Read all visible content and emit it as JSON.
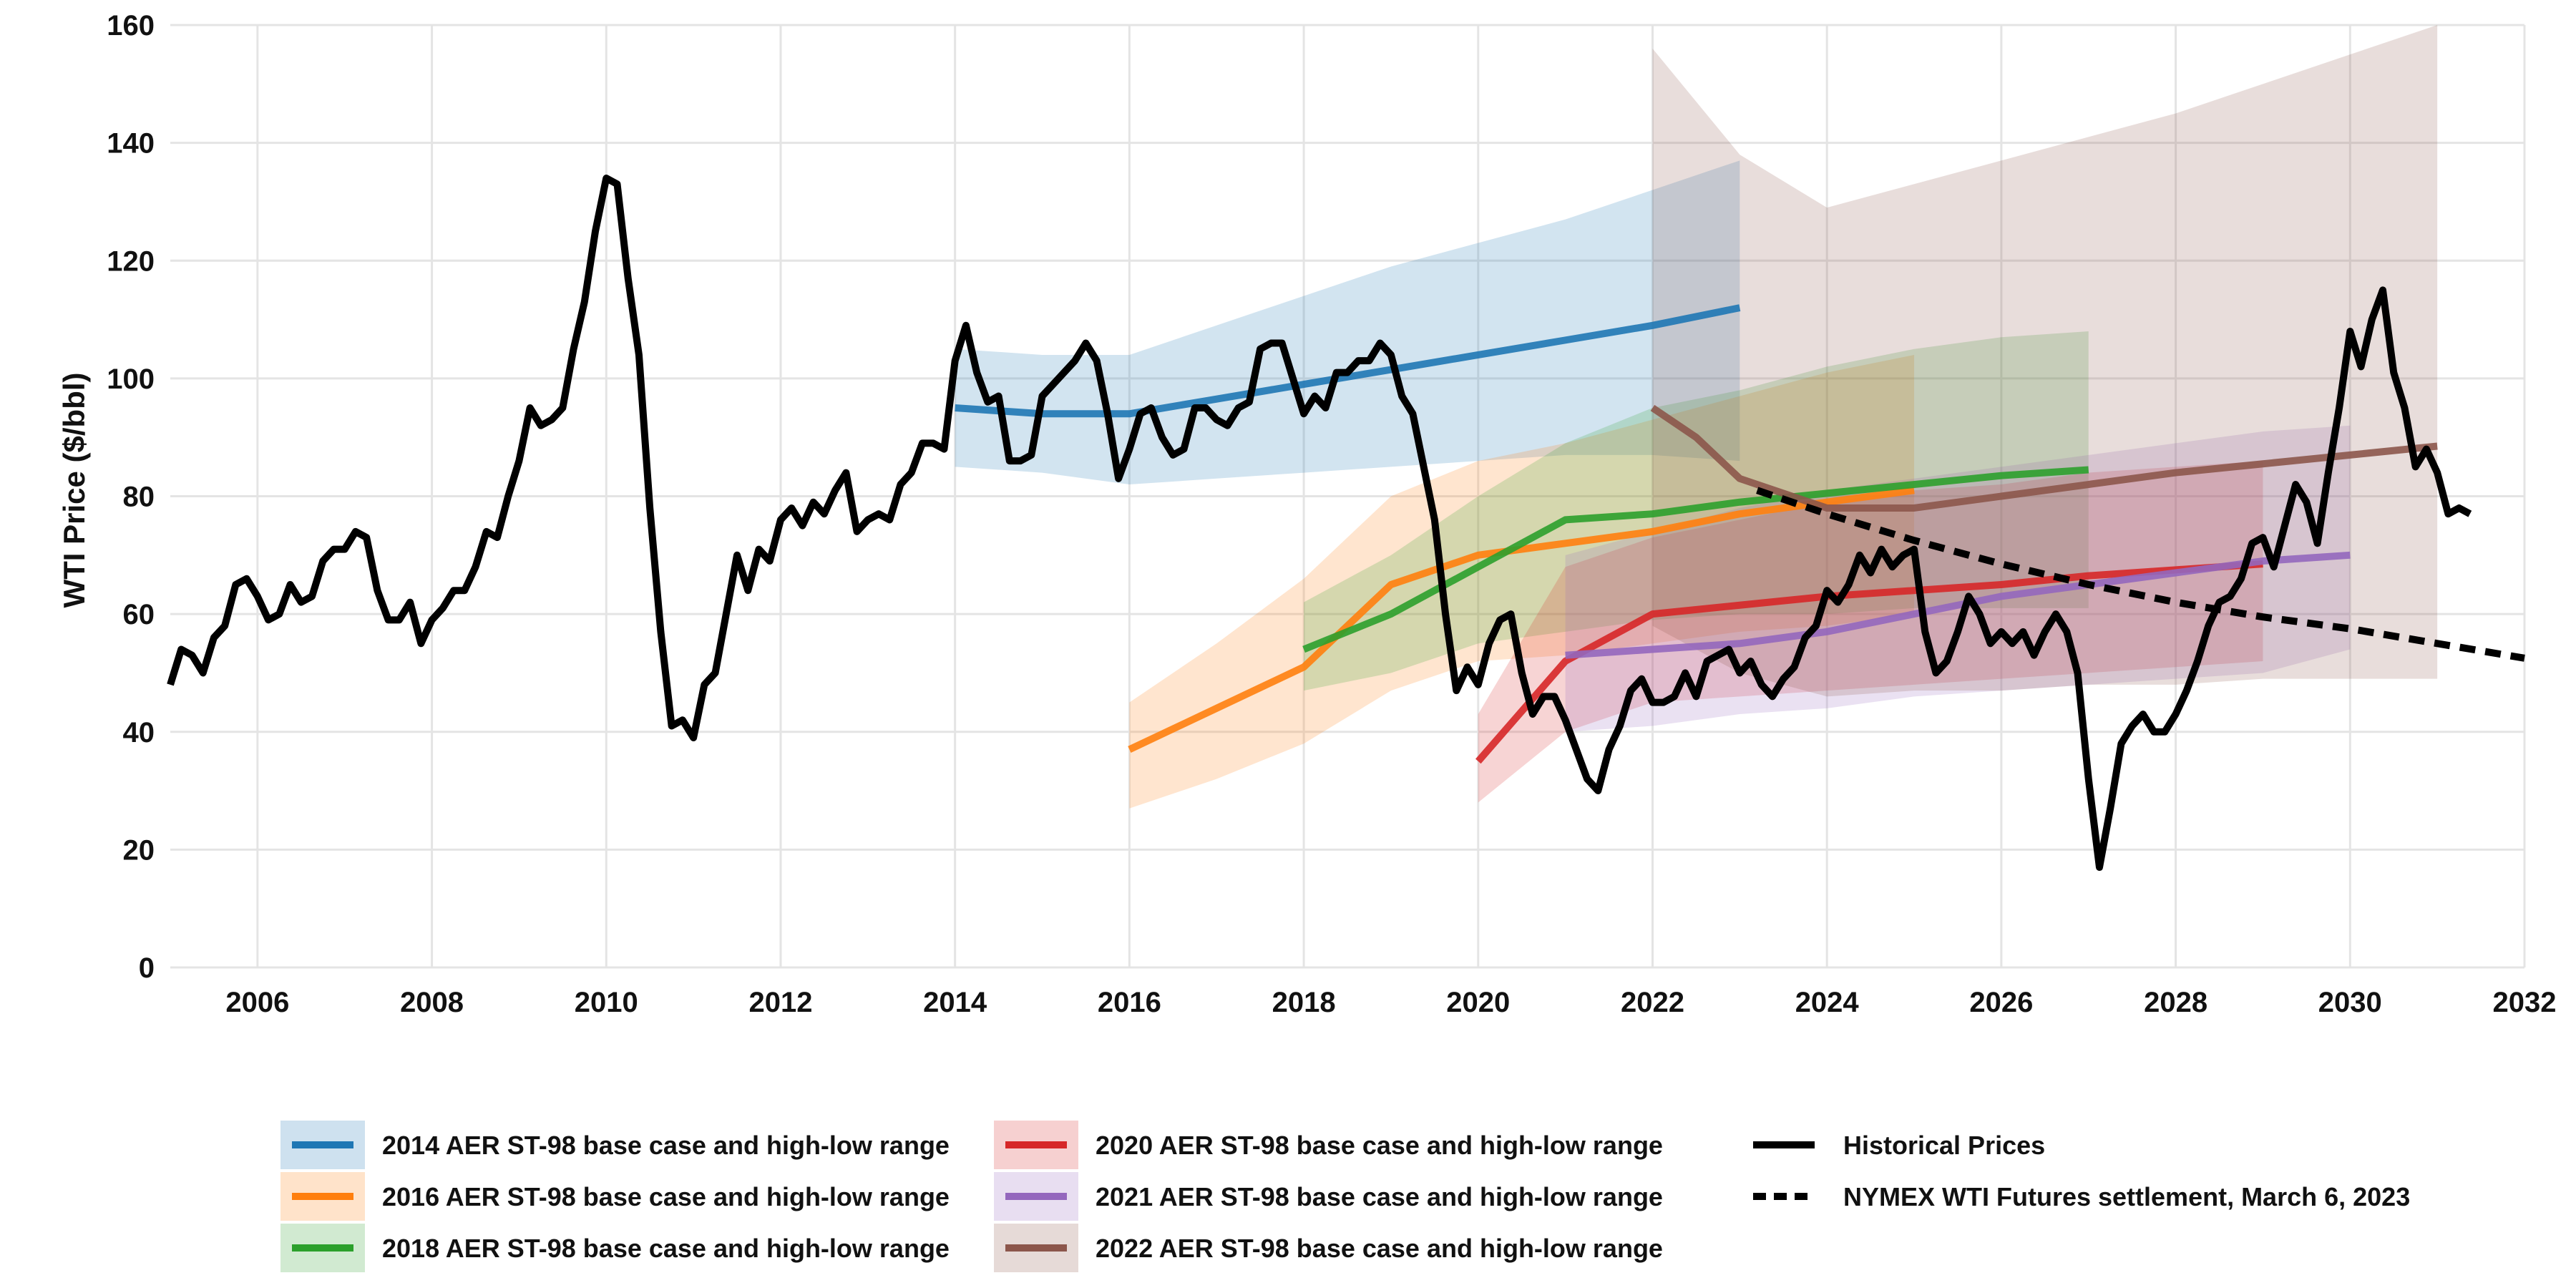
{
  "chart_data": {
    "type": "line",
    "title": "",
    "xlabel": "",
    "ylabel": "WTI Price ($/bbl)",
    "xlim": [
      2005.0,
      2032.0
    ],
    "ylim": [
      0,
      160
    ],
    "xticks": [
      2006,
      2008,
      2010,
      2012,
      2014,
      2016,
      2018,
      2020,
      2022,
      2024,
      2026,
      2028,
      2030,
      2032
    ],
    "yticks": [
      0,
      20,
      40,
      60,
      80,
      100,
      120,
      140,
      160
    ],
    "grid": true,
    "legend_position": "bottom",
    "forecasts": [
      {
        "name": "2014 AER ST-98 base case and high-low range",
        "color": "#1f77b4",
        "base": [
          [
            2014,
            95
          ],
          [
            2015,
            94
          ],
          [
            2016,
            94
          ],
          [
            2017,
            96.5
          ],
          [
            2018,
            99
          ],
          [
            2019,
            101.5
          ],
          [
            2020,
            104
          ],
          [
            2021,
            106.5
          ],
          [
            2022,
            109
          ],
          [
            2023,
            112
          ]
        ],
        "band": [
          [
            2014,
            85,
            105
          ],
          [
            2015,
            84,
            104
          ],
          [
            2016,
            82,
            104
          ],
          [
            2017,
            83,
            109
          ],
          [
            2018,
            84,
            114
          ],
          [
            2019,
            85,
            119
          ],
          [
            2020,
            86,
            123
          ],
          [
            2021,
            87,
            127
          ],
          [
            2022,
            87,
            132
          ],
          [
            2023,
            86,
            137
          ]
        ]
      },
      {
        "name": "2016 AER ST-98 base case and high-low range",
        "color": "#ff7f0e",
        "base": [
          [
            2016,
            37
          ],
          [
            2017,
            44
          ],
          [
            2018,
            51
          ],
          [
            2019,
            65
          ],
          [
            2020,
            70
          ],
          [
            2021,
            72
          ],
          [
            2022,
            74
          ],
          [
            2023,
            77
          ],
          [
            2024,
            79
          ],
          [
            2025,
            81
          ]
        ],
        "band": [
          [
            2016,
            27,
            45
          ],
          [
            2017,
            32,
            55
          ],
          [
            2018,
            38,
            66
          ],
          [
            2019,
            47,
            80
          ],
          [
            2020,
            52,
            86
          ],
          [
            2021,
            53,
            89
          ],
          [
            2022,
            55,
            93
          ],
          [
            2023,
            57,
            97
          ],
          [
            2024,
            58,
            101
          ],
          [
            2025,
            60,
            104
          ]
        ]
      },
      {
        "name": "2018 AER ST-98 base case and high-low range",
        "color": "#2ca02c",
        "base": [
          [
            2018,
            54
          ],
          [
            2019,
            60
          ],
          [
            2020,
            68
          ],
          [
            2021,
            76
          ],
          [
            2022,
            77
          ],
          [
            2023,
            79
          ],
          [
            2024,
            80.5
          ],
          [
            2025,
            82
          ],
          [
            2026,
            83.5
          ],
          [
            2027,
            84.5
          ]
        ],
        "band": [
          [
            2018,
            47,
            62
          ],
          [
            2019,
            50,
            70
          ],
          [
            2020,
            55,
            80
          ],
          [
            2021,
            57,
            89
          ],
          [
            2022,
            59,
            95
          ],
          [
            2023,
            60,
            98
          ],
          [
            2024,
            60,
            102
          ],
          [
            2025,
            61,
            105
          ],
          [
            2026,
            61,
            107
          ],
          [
            2027,
            61,
            108
          ]
        ]
      },
      {
        "name": "2020 AER ST-98 base case and high-low range",
        "color": "#d62728",
        "base": [
          [
            2020,
            35
          ],
          [
            2021,
            52
          ],
          [
            2022,
            60
          ],
          [
            2023,
            61.5
          ],
          [
            2024,
            63
          ],
          [
            2025,
            64
          ],
          [
            2026,
            65
          ],
          [
            2027,
            66.5
          ],
          [
            2028,
            67.5
          ],
          [
            2029,
            68.5
          ]
        ],
        "band": [
          [
            2020,
            28,
            43
          ],
          [
            2021,
            40,
            68
          ],
          [
            2022,
            45,
            73
          ],
          [
            2023,
            46,
            76
          ],
          [
            2024,
            47,
            79
          ],
          [
            2025,
            48,
            81
          ],
          [
            2026,
            49,
            82
          ],
          [
            2027,
            50,
            84
          ],
          [
            2028,
            51,
            85
          ],
          [
            2029,
            52,
            86
          ]
        ]
      },
      {
        "name": "2021 AER ST-98 base case and high-low range",
        "color": "#9467bd",
        "base": [
          [
            2021,
            53
          ],
          [
            2022,
            54
          ],
          [
            2023,
            55
          ],
          [
            2024,
            57
          ],
          [
            2025,
            60
          ],
          [
            2026,
            63
          ],
          [
            2027,
            65
          ],
          [
            2028,
            67
          ],
          [
            2029,
            69
          ],
          [
            2030,
            70
          ]
        ],
        "band": [
          [
            2021,
            40,
            70
          ],
          [
            2022,
            41,
            74
          ],
          [
            2023,
            43,
            78
          ],
          [
            2024,
            44,
            81
          ],
          [
            2025,
            46,
            83
          ],
          [
            2026,
            47,
            85
          ],
          [
            2027,
            48,
            87
          ],
          [
            2028,
            49,
            89
          ],
          [
            2029,
            50,
            91
          ],
          [
            2030,
            54,
            92
          ]
        ]
      },
      {
        "name": "2022 AER ST-98 base case and high-low range",
        "color": "#8c564b",
        "base": [
          [
            2022,
            95
          ],
          [
            2022.5,
            90
          ],
          [
            2023,
            83
          ],
          [
            2024,
            78
          ],
          [
            2025,
            78
          ],
          [
            2026,
            80
          ],
          [
            2027,
            82
          ],
          [
            2028,
            84
          ],
          [
            2029,
            85.5
          ],
          [
            2030,
            87
          ],
          [
            2031,
            88.5
          ]
        ],
        "band": [
          [
            2022,
            58,
            156
          ],
          [
            2023,
            50,
            138
          ],
          [
            2024,
            46,
            129
          ],
          [
            2025,
            47,
            133
          ],
          [
            2026,
            47,
            137
          ],
          [
            2027,
            48,
            141
          ],
          [
            2028,
            48,
            145
          ],
          [
            2029,
            49,
            150
          ],
          [
            2030,
            49,
            155
          ],
          [
            2031,
            49,
            160
          ]
        ]
      }
    ],
    "historical": {
      "name": "Historical Prices",
      "color": "#000000",
      "x_start": 2005.0,
      "x_step": 0.125,
      "values": [
        48,
        54,
        53,
        50,
        56,
        58,
        65,
        66,
        63,
        59,
        60,
        65,
        62,
        63,
        69,
        71,
        71,
        74,
        73,
        64,
        59,
        59,
        62,
        55,
        59,
        61,
        64,
        64,
        68,
        74,
        73,
        80,
        86,
        95,
        92,
        93,
        95,
        105,
        113,
        125,
        134,
        133,
        117,
        104,
        78,
        57,
        41,
        42,
        39,
        48,
        50,
        60,
        70,
        64,
        71,
        69,
        76,
        78,
        75,
        79,
        77,
        81,
        84,
        74,
        76,
        77,
        76,
        82,
        84,
        89,
        89,
        88,
        103,
        109,
        101,
        96,
        97,
        86,
        86,
        87,
        97,
        99,
        101,
        103,
        106,
        103,
        94,
        83,
        88,
        94,
        95,
        90,
        87,
        88,
        95,
        95,
        93,
        92,
        95,
        96,
        105,
        106,
        106,
        100,
        94,
        97,
        95,
        101,
        101,
        103,
        103,
        106,
        104,
        97,
        94,
        85,
        76,
        60,
        47,
        51,
        48,
        55,
        59,
        60,
        50,
        43,
        46,
        46,
        42,
        37,
        32,
        30,
        37,
        41,
        47,
        49,
        45,
        45,
        46,
        50,
        46,
        52,
        53,
        54,
        50,
        52,
        48,
        46,
        49,
        51,
        56,
        58,
        64,
        62,
        65,
        70,
        67,
        71,
        68,
        70,
        71,
        57,
        50,
        52,
        57,
        63,
        60,
        55,
        57,
        55,
        57,
        53,
        57,
        60,
        57,
        50,
        32,
        17,
        27,
        38,
        41,
        43,
        40,
        40,
        43,
        47,
        52,
        58,
        62,
        63,
        66,
        72,
        73,
        68,
        75,
        82,
        79,
        72,
        84,
        95,
        108,
        102,
        110,
        115,
        101,
        95,
        85,
        88,
        84,
        77,
        78,
        77
      ]
    },
    "futures": {
      "name": "NYMEX WTI Futures settlement, March 6, 2023",
      "color": "#000000",
      "points": [
        [
          2023.2,
          81
        ],
        [
          2024,
          77
        ],
        [
          2025,
          72.5
        ],
        [
          2026,
          68.5
        ],
        [
          2027,
          65
        ],
        [
          2028,
          62
        ],
        [
          2029,
          59.5
        ],
        [
          2030,
          57.5
        ],
        [
          2031,
          55
        ],
        [
          2032,
          52.5
        ]
      ]
    }
  }
}
